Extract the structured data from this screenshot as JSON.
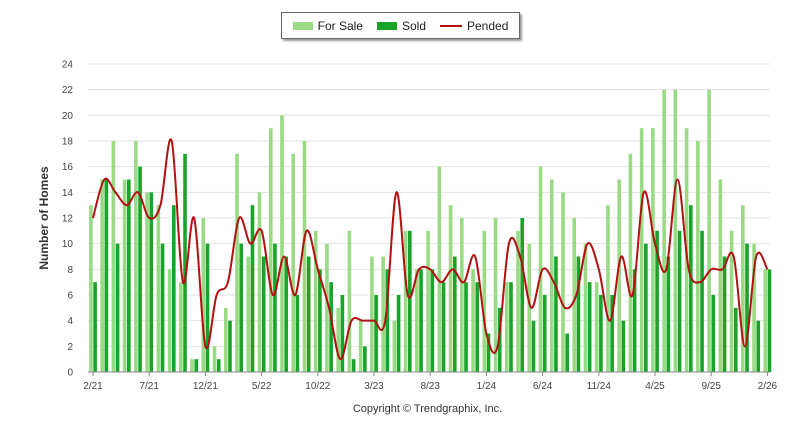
{
  "chart_data": {
    "type": "bar",
    "ylabel": "Number of Homes",
    "ylim": [
      0,
      24
    ],
    "yticks": [
      0,
      2,
      4,
      6,
      8,
      10,
      12,
      14,
      16,
      18,
      20,
      22,
      24
    ],
    "grid": true,
    "legend_position": "top-center",
    "x_tick_labels": [
      "2/21",
      "7/21",
      "12/21",
      "5/22",
      "10/22",
      "3/23",
      "8/23",
      "1/24",
      "6/24",
      "11/24",
      "4/25",
      "9/25",
      "2/26"
    ],
    "months": [
      "2/21",
      "3/21",
      "4/21",
      "5/21",
      "6/21",
      "7/21",
      "8/21",
      "9/21",
      "10/21",
      "11/21",
      "12/21",
      "1/22",
      "2/22",
      "3/22",
      "4/22",
      "5/22",
      "6/22",
      "7/22",
      "8/22",
      "9/22",
      "10/22",
      "11/22",
      "12/22",
      "1/23",
      "2/23",
      "3/23",
      "4/23",
      "5/23",
      "6/23",
      "7/23",
      "8/23",
      "9/23",
      "10/23",
      "11/23",
      "12/23",
      "1/24",
      "2/24",
      "3/24",
      "4/24",
      "5/24",
      "6/24",
      "7/24",
      "8/24",
      "9/24",
      "10/24",
      "11/24",
      "12/24",
      "1/25",
      "2/25",
      "3/25",
      "4/25",
      "5/25",
      "6/25",
      "7/25",
      "8/25",
      "9/25",
      "10/25",
      "11/25",
      "12/25",
      "1/26",
      "2/26"
    ],
    "series": [
      {
        "name": "For Sale",
        "color": "#9ada84",
        "values": [
          13,
          15,
          18,
          15,
          18,
          14,
          13,
          8,
          7,
          1,
          12,
          2,
          5,
          17,
          9,
          14,
          19,
          20,
          17,
          18,
          11,
          10,
          5,
          11,
          4,
          9,
          9,
          4,
          11,
          8,
          11,
          16,
          13,
          12,
          8,
          11,
          12,
          7,
          11,
          10,
          16,
          15,
          14,
          12,
          10,
          7,
          13,
          15,
          17,
          19,
          19,
          22,
          22,
          19,
          18,
          22,
          15,
          11,
          13,
          10,
          8
        ]
      },
      {
        "name": "Sold",
        "color": "#18a329",
        "values": [
          7,
          15,
          10,
          15,
          16,
          14,
          10,
          13,
          17,
          1,
          10,
          1,
          4,
          10,
          13,
          9,
          10,
          9,
          6,
          9,
          8,
          7,
          6,
          1,
          2,
          6,
          8,
          6,
          11,
          8,
          8,
          7,
          9,
          7,
          7,
          3,
          5,
          7,
          12,
          4,
          6,
          9,
          3,
          9,
          7,
          6,
          6,
          4,
          8,
          10,
          11,
          9,
          11,
          13,
          11,
          6,
          9,
          5,
          10,
          4,
          8
        ]
      },
      {
        "name": "Pended",
        "color": "#b31111",
        "values": [
          12,
          15,
          14,
          13,
          14,
          12,
          13,
          18,
          7,
          12,
          2,
          6,
          7,
          12,
          10,
          11,
          6,
          9,
          6,
          11,
          8,
          5,
          1,
          4,
          4,
          4,
          4,
          14,
          6,
          8,
          8,
          7,
          8,
          7,
          9,
          3,
          2,
          10,
          9,
          5,
          8,
          7,
          5,
          6,
          10,
          8,
          4,
          9,
          6,
          14,
          10,
          8,
          15,
          8,
          7,
          8,
          8,
          9,
          2,
          9,
          8
        ]
      }
    ]
  },
  "footer": {
    "copyright": "Copyright © Trendgraphix, Inc."
  }
}
